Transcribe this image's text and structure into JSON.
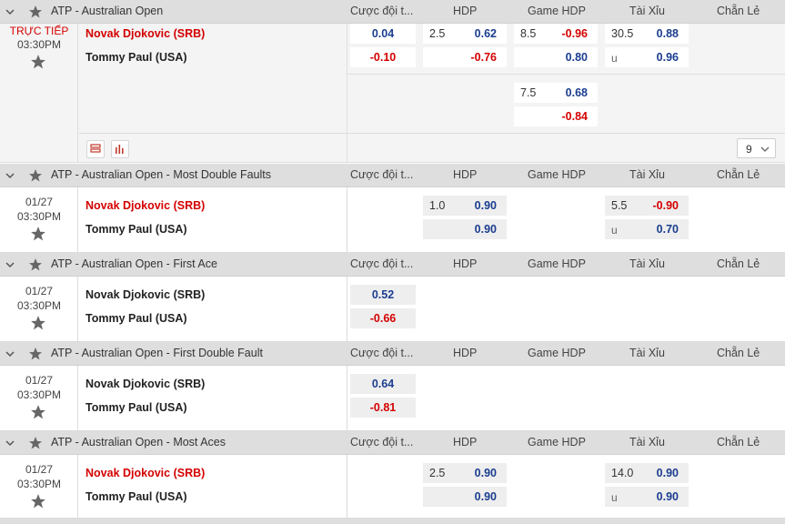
{
  "columns": {
    "cuoc": "Cược đội t...",
    "hdp": "HDP",
    "game_hdp": "Game HDP",
    "tai_xiu": "Tài Xỉu",
    "chan_le": "Chẵn Lẻ"
  },
  "colors": {
    "red": "#d40000",
    "blue": "#1a3d8f",
    "header_bg": "#dedede"
  },
  "icons": [
    "chevron-down-icon",
    "star-icon",
    "list-icon",
    "bar-chart-icon"
  ],
  "sections": [
    {
      "league": "ATP - Australian Open",
      "status": "TRỰC TIẾP",
      "time": "03:30PM",
      "home": "Novak Djokovic (SRB)",
      "away": "Tommy Paul (USA)",
      "odds": {
        "cuoc_home": "0.04",
        "cuoc_away": "-0.10",
        "hdp_home_h": "2.5",
        "hdp_home_v": "0.62",
        "hdp_away_v": "-0.76",
        "ghdp_home_h": "8.5",
        "ghdp_home_v": "-0.96",
        "ghdp_away_v": "0.80",
        "ghdp2_home_h": "7.5",
        "ghdp2_home_v": "0.68",
        "ghdp2_away_v": "-0.84",
        "tx_home_h": "30.5",
        "tx_home_v": "0.88",
        "tx_away_h": "u",
        "tx_away_v": "0.96"
      },
      "more_count": "9"
    },
    {
      "league": "ATP - Australian Open - Most Double Faults",
      "date": "01/27",
      "time": "03:30PM",
      "home": "Novak Djokovic (SRB)",
      "away": "Tommy Paul (USA)",
      "odds": {
        "hdp_home_h": "1.0",
        "hdp_home_v": "0.90",
        "hdp_away_v": "0.90",
        "tx_home_h": "5.5",
        "tx_home_v": "-0.90",
        "tx_away_h": "u",
        "tx_away_v": "0.70"
      }
    },
    {
      "league": "ATP - Australian Open - First Ace",
      "date": "01/27",
      "time": "03:30PM",
      "home": "Novak Djokovic (SRB)",
      "away": "Tommy Paul (USA)",
      "odds": {
        "cuoc_home": "0.52",
        "cuoc_away": "-0.66"
      }
    },
    {
      "league": "ATP - Australian Open - First Double Fault",
      "date": "01/27",
      "time": "03:30PM",
      "home": "Novak Djokovic (SRB)",
      "away": "Tommy Paul (USA)",
      "odds": {
        "cuoc_home": "0.64",
        "cuoc_away": "-0.81"
      }
    },
    {
      "league": "ATP - Australian Open - Most Aces",
      "date": "01/27",
      "time": "03:30PM",
      "home": "Novak Djokovic (SRB)",
      "away": "Tommy Paul (USA)",
      "odds": {
        "hdp_home_h": "2.5",
        "hdp_home_v": "0.90",
        "hdp_away_v": "0.90",
        "tx_home_h": "14.0",
        "tx_home_v": "0.90",
        "tx_away_h": "u",
        "tx_away_v": "0.90"
      }
    }
  ]
}
